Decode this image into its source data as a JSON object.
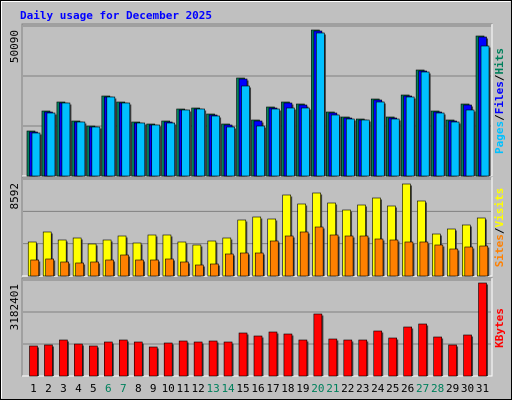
{
  "title": "Daily usage for December 2025",
  "chart_data": [
    {
      "type": "bar",
      "ylim": [
        0,
        50090
      ],
      "yticks": [
        50090
      ],
      "grid": true,
      "legend_separator": "/",
      "series": [
        {
          "name": "Hits",
          "color": "#00805c",
          "values": [
            15026,
            21705,
            24711,
            18366,
            16697,
            26715,
            24711,
            18032,
            17364,
            18366,
            22374,
            22707,
            20704,
            17364,
            32725,
            18700,
            23041,
            24711,
            24043,
            48754,
            21372,
            19702,
            19034,
            25713,
            19702,
            27048,
            35397,
            21705,
            18700,
            24043,
            46750
          ]
        },
        {
          "name": "Files",
          "color": "#0000ff",
          "values": [
            14692,
            21371,
            24377,
            18032,
            16363,
            26381,
            24377,
            17698,
            17030,
            18032,
            22040,
            22373,
            20370,
            17030,
            32391,
            18366,
            22707,
            24377,
            23709,
            48420,
            21038,
            19368,
            18700,
            25379,
            19368,
            26714,
            35063,
            21371,
            18366,
            23709,
            46416
          ]
        },
        {
          "name": "Pages",
          "color": "#00c0ff",
          "values": [
            14359,
            21038,
            24377,
            18032,
            16363,
            26381,
            24377,
            17698,
            17030,
            17698,
            22040,
            22373,
            20036,
            16363,
            30054,
            16697,
            22373,
            22707,
            22707,
            47752,
            20370,
            19034,
            18700,
            24711,
            19034,
            26381,
            34729,
            21038,
            18032,
            22040,
            43411
          ]
        }
      ]
    },
    {
      "type": "bar",
      "ylim": [
        0,
        8592
      ],
      "yticks": [
        8592
      ],
      "grid": true,
      "legend_separator": "/",
      "series": [
        {
          "name": "Visits",
          "color": "#ffff00",
          "values": [
            3012,
            3898,
            3189,
            3366,
            2835,
            3189,
            3543,
            2923,
            3632,
            3632,
            3012,
            2746,
            3100,
            3366,
            4960,
            5226,
            5049,
            7175,
            6378,
            7352,
            6466,
            5846,
            6289,
            6909,
            6201,
            8149,
            6644,
            3720,
            4163,
            4518,
            5138
          ]
        },
        {
          "name": "Sites",
          "color": "#ff8000",
          "values": [
            1417,
            1506,
            1240,
            1152,
            1240,
            1417,
            1860,
            1417,
            1417,
            1506,
            1240,
            974,
            1063,
            1949,
            2037,
            2037,
            3100,
            3543,
            3898,
            4340,
            3632,
            3543,
            3543,
            3277,
            3189,
            3012,
            3012,
            2746,
            2392,
            2569,
            2657
          ]
        }
      ]
    },
    {
      "type": "bar",
      "ylim": [
        0,
        3182401
      ],
      "yticks": [
        3182401
      ],
      "grid": true,
      "categories": [
        "1",
        "2",
        "3",
        "4",
        "5",
        "6",
        "7",
        "8",
        "9",
        "10",
        "11",
        "12",
        "13",
        "14",
        "15",
        "16",
        "17",
        "18",
        "19",
        "20",
        "21",
        "22",
        "23",
        "24",
        "25",
        "26",
        "27",
        "28",
        "29",
        "30",
        "31"
      ],
      "category_colors": [
        "#000000",
        "#000000",
        "#000000",
        "#000000",
        "#000000",
        "#00805c",
        "#00805c",
        "#000000",
        "#000000",
        "#000000",
        "#000000",
        "#000000",
        "#00805c",
        "#00805c",
        "#000000",
        "#000000",
        "#000000",
        "#000000",
        "#000000",
        "#00805c",
        "#00805c",
        "#000000",
        "#000000",
        "#000000",
        "#000000",
        "#000000",
        "#00805c",
        "#00805c",
        "#000000",
        "#000000",
        "#000000"
      ],
      "series": [
        {
          "name": "KBytes",
          "color": "#ff0000",
          "values": [
            994500,
            1027650,
            1193400,
            1060800,
            994500,
            1127100,
            1193400,
            1127100,
            961350,
            1093950,
            1160250,
            1127100,
            1160250,
            1127100,
            1425450,
            1326000,
            1458600,
            1392300,
            1193400,
            2055300,
            1226550,
            1193400,
            1193400,
            1491750,
            1259700,
            1624350,
            1723800,
            1292850,
            1027650,
            1359150,
            3082950
          ]
        }
      ]
    }
  ]
}
